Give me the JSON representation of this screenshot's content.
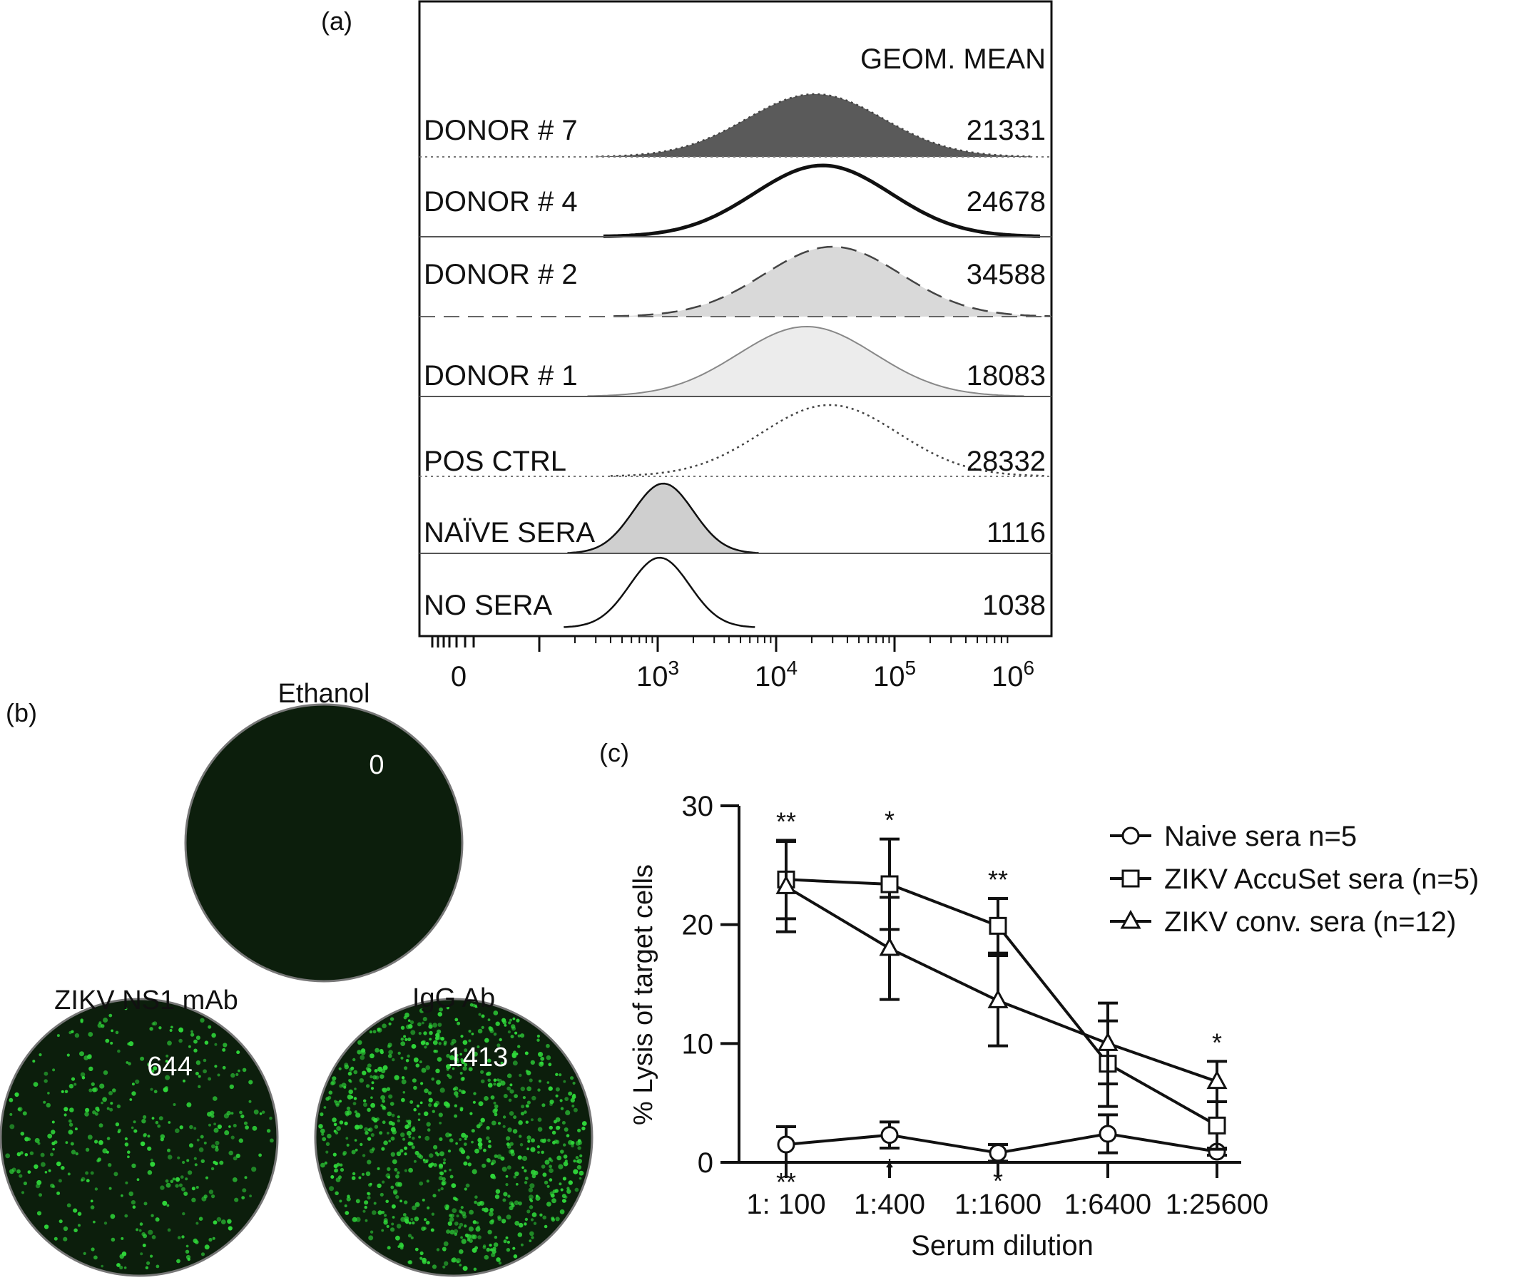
{
  "chart_data": [
    {
      "panel": "(a)",
      "type": "area",
      "value_header": "GEOM. MEAN",
      "x_scale": "log",
      "x_ticks": [
        {
          "value": 0,
          "base": "0",
          "exp": ""
        },
        {
          "value": 1000,
          "base": "10",
          "exp": "3"
        },
        {
          "value": 10000,
          "base": "10",
          "exp": "4"
        },
        {
          "value": 100000,
          "base": "10",
          "exp": "5"
        },
        {
          "value": 1000000,
          "base": "10",
          "exp": "6"
        }
      ],
      "histograms": [
        {
          "label": "DONOR # 7",
          "geom_mean": "21331",
          "peak": 21331,
          "fill": "#5a5a5a",
          "line": "dotted"
        },
        {
          "label": "DONOR # 4",
          "geom_mean": "24678",
          "peak": 24678,
          "fill": "none",
          "line": "solid-thick"
        },
        {
          "label": "DONOR # 2",
          "geom_mean": "34588",
          "peak": 30000,
          "fill": "#d9d9d9",
          "line": "dashed"
        },
        {
          "label": "DONOR # 1",
          "geom_mean": "18083",
          "peak": 18083,
          "fill": "#ececec",
          "line": "solid-thin"
        },
        {
          "label": "POS CTRL",
          "geom_mean": "28332",
          "peak": 28332,
          "fill": "none",
          "line": "dotted"
        },
        {
          "label": "NAÏVE SERA",
          "geom_mean": "1116",
          "peak": 1116,
          "fill": "#cfcfcf",
          "line": "solid"
        },
        {
          "label": "NO SERA",
          "geom_mean": "1038",
          "peak": 1038,
          "fill": "none",
          "line": "solid"
        }
      ]
    },
    {
      "panel": "(b)",
      "type": "image",
      "wells": [
        {
          "label": "Ethanol",
          "count": "0",
          "dots": 0
        },
        {
          "label": "ZIKV NS1 mAb",
          "count": "644",
          "dots": 644
        },
        {
          "label": "IgG Ab",
          "count": "1413",
          "dots": 1413
        }
      ],
      "colors": {
        "well_bg": "#0c1e0c",
        "dot": "#2fd83a"
      }
    },
    {
      "panel": "(c)",
      "type": "line",
      "xlabel": "Serum dilution",
      "ylabel": "% Lysis of target cells",
      "categories": [
        "1: 100",
        "1:400",
        "1:1600",
        "1:6400",
        "1:25600"
      ],
      "ylim": [
        0,
        30
      ],
      "yticks": [
        0,
        10,
        20,
        30
      ],
      "series": [
        {
          "name": "Naive sera n=5",
          "marker": "circle",
          "values": [
            1.5,
            2.3,
            0.8,
            2.4,
            0.9
          ],
          "err": [
            1.5,
            1.1,
            0.7,
            1.6,
            0.3
          ]
        },
        {
          "name": "ZIKV AccuSet sera (n=5)",
          "marker": "square",
          "values": [
            23.8,
            23.4,
            19.9,
            8.3,
            3.1
          ],
          "err": [
            3.3,
            3.8,
            2.3,
            3.6,
            2.0
          ]
        },
        {
          "name": "ZIKV conv. sera (n=12)",
          "marker": "triangle",
          "values": [
            23.2,
            18.0,
            13.6,
            10.0,
            6.8
          ],
          "err": [
            3.8,
            4.3,
            3.8,
            3.4,
            1.7
          ]
        }
      ],
      "annotations": [
        {
          "category": 0,
          "text": "**",
          "side": "above"
        },
        {
          "category": 0,
          "text": "**",
          "side": "below"
        },
        {
          "category": 1,
          "text": "*",
          "side": "above"
        },
        {
          "category": 1,
          "text": "*",
          "side": "below"
        },
        {
          "category": 2,
          "text": "**",
          "side": "above"
        },
        {
          "category": 2,
          "text": "*",
          "side": "below"
        },
        {
          "category": 4,
          "text": "*",
          "side": "above"
        }
      ]
    }
  ]
}
